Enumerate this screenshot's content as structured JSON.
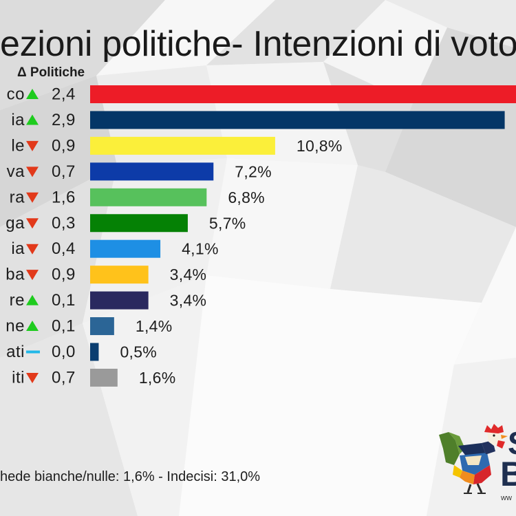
{
  "chart_data": {
    "type": "bar",
    "orientation": "horizontal",
    "title": "ezioni politiche- Intenzioni di voto",
    "delta_header": "Δ Politiche",
    "unit": "%",
    "categories": [
      "co",
      "ia",
      "le",
      "va",
      "ra",
      "ga",
      "ia",
      "ba",
      "re",
      "ne",
      "ati",
      "iti"
    ],
    "values": [
      null,
      24.2,
      10.8,
      7.2,
      6.8,
      5.7,
      4.1,
      3.4,
      3.4,
      1.4,
      0.5,
      1.6
    ],
    "value_labels": [
      "",
      "",
      "10,8%",
      "7,2%",
      "6,8%",
      "5,7%",
      "4,1%",
      "3,4%",
      "3,4%",
      "1,4%",
      "0,5%",
      "1,6%"
    ],
    "deltas": [
      "2,4",
      "2,9",
      "0,9",
      "0,7",
      "1,6",
      "0,3",
      "0,4",
      "0,9",
      "0,1",
      "0,1",
      "0,0",
      "0,7"
    ],
    "trends": [
      "up",
      "up",
      "down",
      "down",
      "down",
      "down",
      "down",
      "down",
      "up",
      "up",
      "flat",
      "down"
    ],
    "colors": [
      "#ED1C27",
      "#043667",
      "#FBEF3A",
      "#0D3BA8",
      "#57C15C",
      "#058105",
      "#1E8FE4",
      "#FFC21B",
      "#2A295F",
      "#2B6596",
      "#0A3D70",
      "#9A9A9A"
    ]
  },
  "footnote": "hede bianche/nulle: 1,6% - Indecisi: 31,0%",
  "logo": {
    "letter_top": "S",
    "letter_bottom": "B",
    "url_fragment": "ww"
  },
  "colors": {
    "trend_up": "#1ECB1E",
    "trend_down": "#E2391A",
    "trend_flat": "#22B8E8",
    "background": "#f0f0f0",
    "text": "#1d1d1d"
  },
  "icons": {
    "up": "triangle-up-icon",
    "down": "triangle-down-icon",
    "flat": "dash-icon"
  }
}
